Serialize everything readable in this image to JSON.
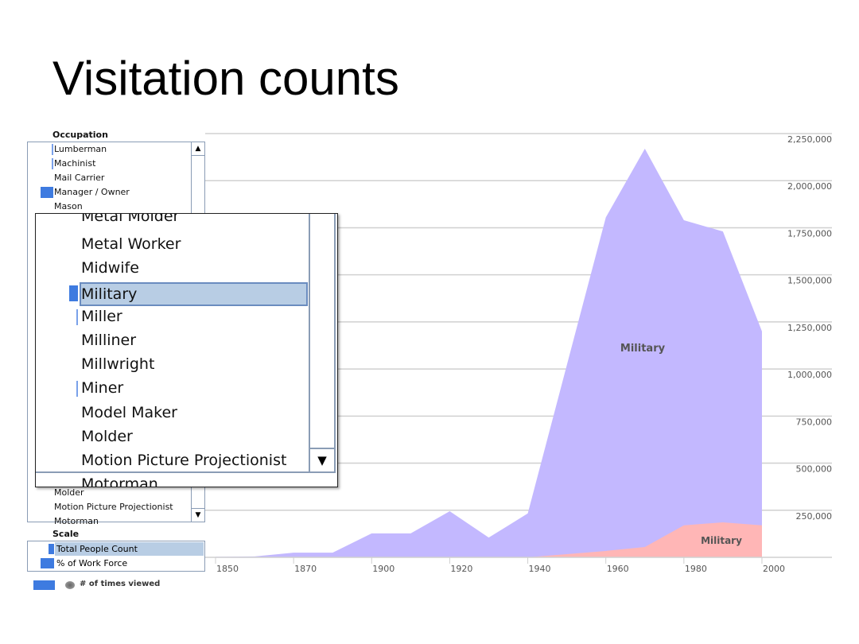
{
  "slide_title": "Visitation counts",
  "occupation": {
    "label": "Occupation",
    "items": [
      {
        "label": "Lumberman",
        "marker": "thin"
      },
      {
        "label": "Machinist",
        "marker": "thin"
      },
      {
        "label": "Mail Carrier",
        "marker": "none"
      },
      {
        "label": "Manager / Owner",
        "marker": "wide"
      },
      {
        "label": "Mason",
        "marker": "none"
      }
    ],
    "bottom_items": [
      {
        "label": "Molder"
      },
      {
        "label": "Motion Picture Projectionist"
      },
      {
        "label": "Motorman"
      }
    ]
  },
  "magnifier": {
    "items": [
      {
        "label": "Metal Molder",
        "marker": "none"
      },
      {
        "label": "Metal Worker",
        "marker": "none"
      },
      {
        "label": "Midwife",
        "marker": "none"
      },
      {
        "label": "Military",
        "marker": "wide",
        "selected": true
      },
      {
        "label": "Miller",
        "marker": "thin"
      },
      {
        "label": "Milliner",
        "marker": "none"
      },
      {
        "label": "Millwright",
        "marker": "none"
      },
      {
        "label": "Miner",
        "marker": "thin"
      },
      {
        "label": "Model Maker",
        "marker": "none"
      },
      {
        "label": "Molder",
        "marker": "none"
      },
      {
        "label": "Motion Picture Projectionist",
        "marker": "none"
      },
      {
        "label": "Motorman",
        "marker": "none"
      }
    ]
  },
  "scale": {
    "label": "Scale",
    "items": [
      {
        "label": "Total People Count",
        "selected": true
      },
      {
        "label": "% of Work Force",
        "selected": false
      }
    ]
  },
  "legend": {
    "label": "# of times viewed"
  },
  "colors": {
    "accent": "#3e7be0",
    "selection": "#b8cde4",
    "total_area": "#c3b8ff",
    "percent_area": "#ffb6b6"
  },
  "chart_data": {
    "type": "area",
    "categories": [
      1850,
      1860,
      1870,
      1880,
      1900,
      1910,
      1920,
      1930,
      1940,
      1950,
      1960,
      1970,
      1980,
      1990,
      2000
    ],
    "x_tick_labels": [
      "1850",
      "1870",
      "1900",
      "1920",
      "1940",
      "1960",
      "1980",
      "2000"
    ],
    "x_tick_indices": [
      0,
      2,
      4,
      6,
      8,
      10,
      12,
      14
    ],
    "y_ticks": [
      "250,000",
      "500,000",
      "750,000",
      "1,000,000",
      "1,250,000",
      "1,500,000",
      "1,750,000",
      "2,000,000",
      "2,250,000"
    ],
    "ylim": [
      0,
      2250000
    ],
    "grid": true,
    "series": [
      {
        "name": "Military",
        "values": [
          3000,
          5000,
          25000,
          25000,
          127000,
          127000,
          245000,
          105000,
          233000,
          1020000,
          1805000,
          2170000,
          1790000,
          1730000,
          1200000
        ]
      },
      {
        "name": "Military",
        "values": [
          0,
          0,
          0,
          0,
          0,
          0,
          0,
          0,
          0,
          17000,
          34000,
          55000,
          170000,
          186000,
          170000
        ]
      }
    ]
  }
}
